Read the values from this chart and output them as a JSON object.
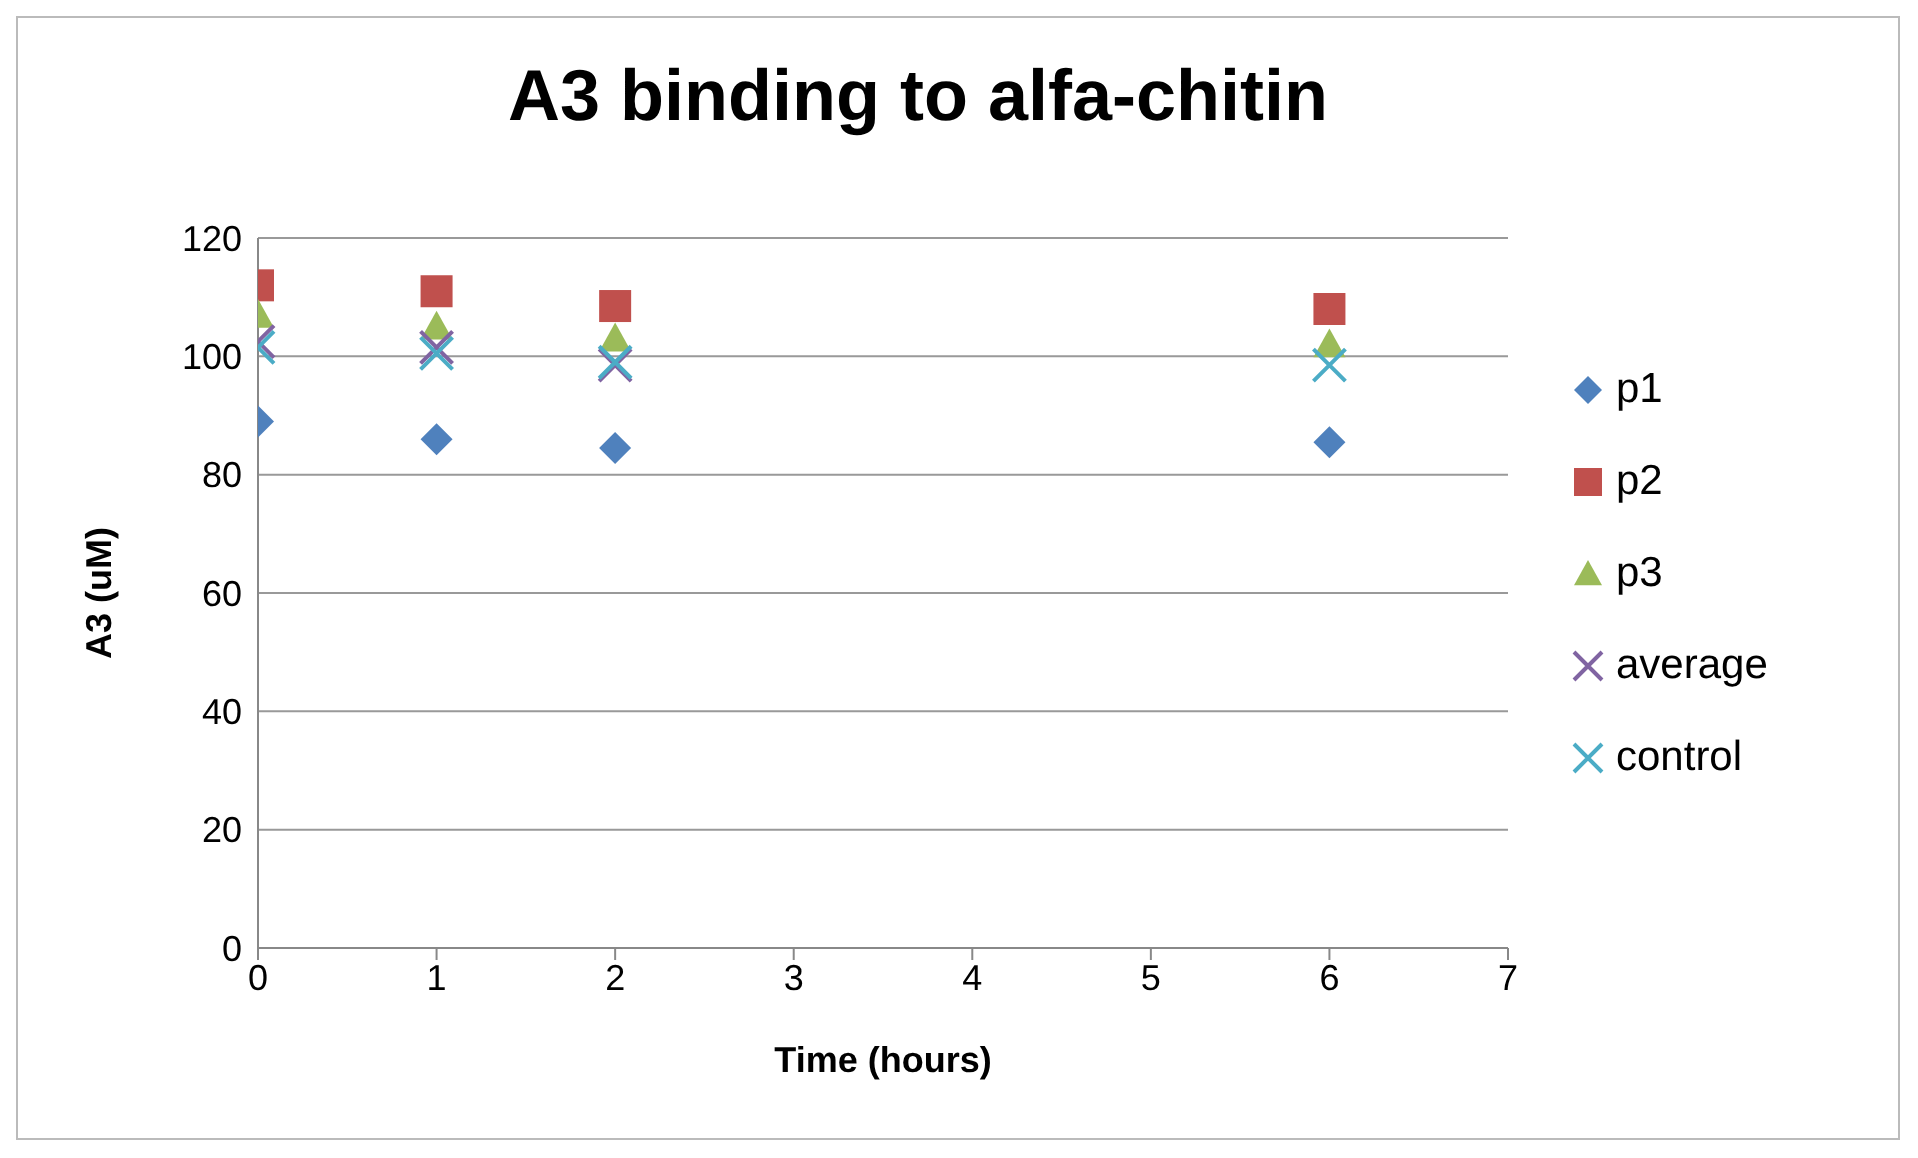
{
  "chart_data": {
    "type": "scatter",
    "title": "A3 binding to alfa-chitin",
    "xlabel": "Time (hours)",
    "ylabel": "A3 (uM)",
    "x": [
      0,
      1,
      2,
      6
    ],
    "series": [
      {
        "name": "p1",
        "color": "#4f81bd",
        "marker": "diamond",
        "values": [
          89,
          86,
          84.5,
          85.5
        ]
      },
      {
        "name": "p2",
        "color": "#c0504d",
        "marker": "square",
        "values": [
          112,
          111,
          108.5,
          108
        ]
      },
      {
        "name": "p3",
        "color": "#9bbb59",
        "marker": "triangle",
        "values": [
          107,
          105,
          103,
          102
        ]
      },
      {
        "name": "average",
        "color": "#8064a2",
        "marker": "cross",
        "values": [
          102.5,
          101.5,
          98.5,
          null
        ]
      },
      {
        "name": "control",
        "color": "#4bacc6",
        "marker": "cross",
        "values": [
          101.5,
          100.5,
          99,
          98.5
        ]
      }
    ],
    "xlim": [
      0,
      7
    ],
    "xticks": [
      0,
      1,
      2,
      3,
      4,
      5,
      6,
      7
    ],
    "ylim": [
      0,
      120
    ],
    "yticks": [
      0,
      20,
      40,
      60,
      80,
      100,
      120
    ],
    "grid": "y",
    "legend": "right"
  }
}
